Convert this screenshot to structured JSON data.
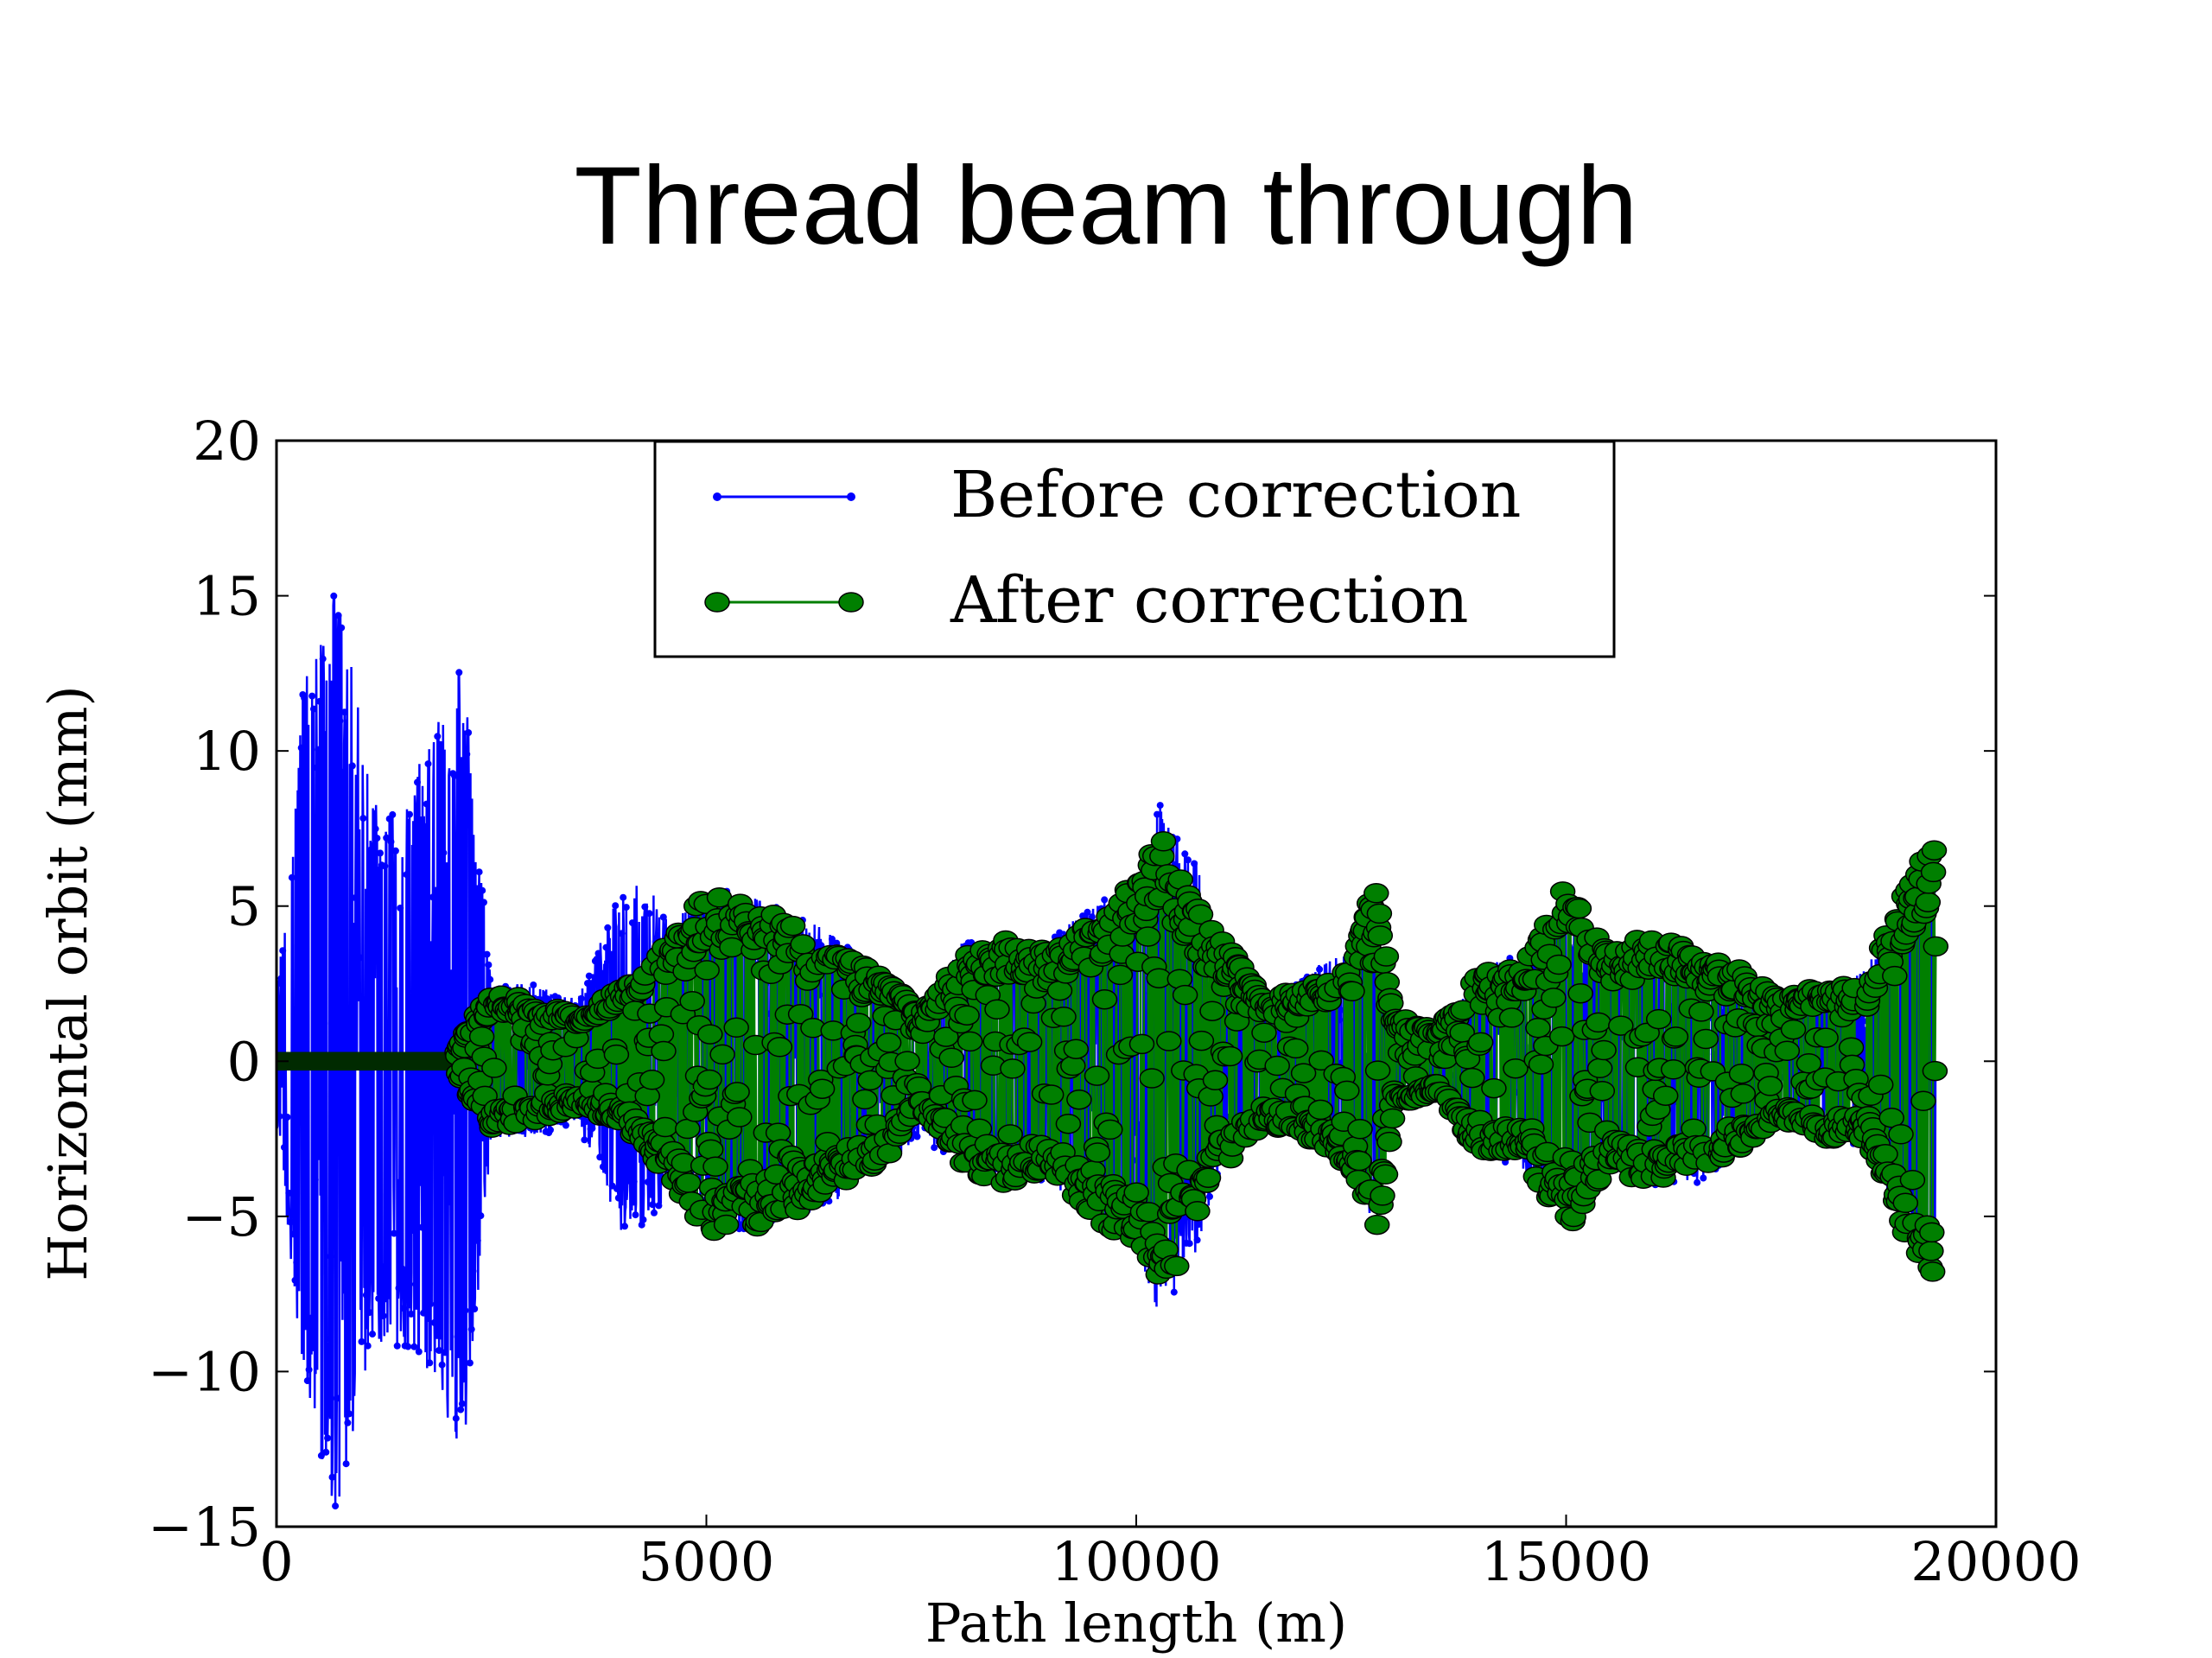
{
  "slide": {
    "title": "Thread beam through"
  },
  "chart_data": {
    "type": "line",
    "xlabel": "Path length (m)",
    "ylabel": "Horizontal orbit (mm)",
    "xlim": [
      0,
      20000
    ],
    "ylim": [
      -15,
      20
    ],
    "xticks": [
      0,
      5000,
      10000,
      15000,
      20000
    ],
    "xtick_labels": [
      "0",
      "5000",
      "10000",
      "15000",
      "20000"
    ],
    "yticks": [
      -15,
      -10,
      -5,
      0,
      5,
      10,
      15,
      20
    ],
    "ytick_labels": [
      "−15",
      "−10",
      "−5",
      "0",
      "5",
      "10",
      "15",
      "20"
    ],
    "grid": false,
    "legend_position": "top-center",
    "series": [
      {
        "name": "Before correction",
        "color": "#0000ff",
        "marker": "small-dot",
        "envelope_x": [
          0,
          300,
          700,
          1100,
          1500,
          1800,
          2100,
          2200,
          2500,
          3000,
          3500,
          4000,
          4300,
          4600,
          5000,
          5500,
          6000,
          6500,
          7000,
          7500,
          8000,
          8500,
          9000,
          9500,
          10000,
          10300,
          10500,
          10700,
          11000,
          11500,
          12000,
          12500,
          12800,
          13000,
          13500,
          14000,
          14500,
          15000,
          15500,
          16000,
          16500,
          17000,
          17500,
          18000,
          18500,
          19000,
          19300
        ],
        "envelope_upper": [
          2,
          12,
          15.5,
          9,
          8,
          11,
          13.5,
          12,
          2.5,
          2.5,
          2,
          5.5,
          6,
          4.5,
          5.5,
          5.5,
          5,
          4,
          3,
          1.5,
          4,
          3.5,
          4,
          5,
          6,
          8.5,
          7,
          6.5,
          3,
          2,
          3,
          3.5,
          4,
          1.5,
          1,
          3,
          3.5,
          5.5,
          3.5,
          4,
          3.5,
          3,
          2,
          2,
          3,
          6,
          7.2
        ],
        "envelope_lower": [
          -2,
          -10,
          -15,
          -9,
          -9.5,
          -10,
          -12.5,
          -12,
          -2.5,
          -2.5,
          -2,
          -5.5,
          -5.5,
          -4,
          -5.5,
          -5.5,
          -5,
          -4.5,
          -3.5,
          -2.5,
          -3.5,
          -3.5,
          -4,
          -5,
          -6,
          -8.5,
          -7,
          -6.5,
          -3,
          -2,
          -2.5,
          -3.5,
          -5.5,
          -1.5,
          -1,
          -3,
          -3.5,
          -5,
          -3.5,
          -4,
          -4,
          -3,
          -2,
          -2,
          -3,
          -6,
          -7
        ]
      },
      {
        "name": "After correction",
        "color": "#007f00",
        "marker": "large-dot",
        "envelope_x": [
          0,
          2100,
          2200,
          2500,
          3000,
          3500,
          4000,
          4300,
          4600,
          5000,
          5500,
          6000,
          6500,
          7000,
          7500,
          8000,
          8500,
          9000,
          9500,
          10000,
          10300,
          10500,
          10700,
          11000,
          11500,
          12000,
          12500,
          12800,
          13000,
          13500,
          14000,
          14500,
          15000,
          15500,
          16000,
          16500,
          17000,
          17500,
          18000,
          18500,
          19000,
          19300
        ],
        "envelope_upper": [
          0.3,
          0.3,
          1.0,
          2.2,
          2.0,
          1.5,
          2.5,
          3.0,
          4.0,
          5.5,
          5.0,
          4.5,
          3.5,
          3.0,
          1.5,
          3.5,
          4.0,
          3.5,
          4.5,
          6.0,
          7.2,
          6.0,
          5.0,
          4.0,
          2.0,
          2.5,
          3.0,
          6.0,
          1.5,
          1.0,
          3.0,
          3.0,
          5.7,
          3.5,
          4.3,
          3.5,
          3.0,
          2.0,
          2.5,
          2.5,
          6.0,
          7.3
        ],
        "envelope_lower": [
          -0.3,
          -0.3,
          -1.0,
          -2.2,
          -2.0,
          -1.5,
          -2.0,
          -3.0,
          -4.0,
          -5.8,
          -5.5,
          -5.0,
          -4.0,
          -3.5,
          -1.5,
          -3.5,
          -4.0,
          -3.5,
          -5.0,
          -6.0,
          -7.2,
          -6.5,
          -5.0,
          -3.5,
          -2.0,
          -2.5,
          -3.5,
          -5.8,
          -1.5,
          -1.0,
          -3.0,
          -3.0,
          -5.5,
          -3.5,
          -4.0,
          -3.5,
          -3.0,
          -2.0,
          -2.5,
          -2.5,
          -6.0,
          -7.1
        ]
      }
    ]
  }
}
